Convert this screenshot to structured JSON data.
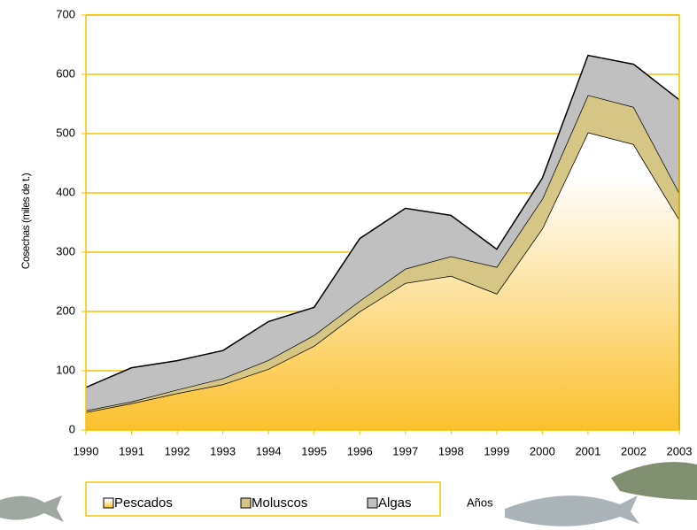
{
  "chart_data": {
    "type": "stacked_area",
    "x_label": "Años",
    "y_label": "Cosechas (miles de t.)",
    "categories": [
      "1990",
      "1991",
      "1992",
      "1993",
      "1994",
      "1995",
      "1996",
      "1997",
      "1998",
      "1999",
      "2000",
      "2001",
      "2002",
      "2003"
    ],
    "series": [
      {
        "name": "Pescados",
        "color": "#fbc02d",
        "values": [
          30,
          45,
          62,
          77,
          103,
          142,
          200,
          248,
          260,
          230,
          340,
          502,
          482,
          355
        ]
      },
      {
        "name": "Moluscos",
        "color": "#d6c685",
        "values": [
          3,
          3,
          6,
          10,
          15,
          18,
          18,
          24,
          33,
          45,
          50,
          63,
          63,
          45
        ]
      },
      {
        "name": "Algas",
        "color": "#c0c0c0",
        "values": [
          39,
          57,
          49,
          47,
          65,
          47,
          105,
          102,
          69,
          30,
          35,
          67,
          72,
          157
        ]
      }
    ],
    "ylim": [
      0,
      700
    ],
    "yticks": [
      0,
      100,
      200,
      300,
      400,
      500,
      600,
      700
    ],
    "grid": true,
    "grid_color": "#f5c400"
  }
}
